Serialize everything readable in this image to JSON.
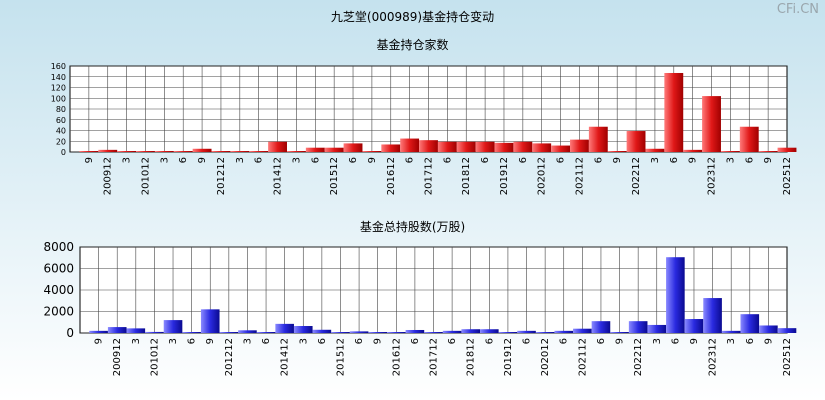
{
  "watermark": "CFi.CN",
  "chart_data": [
    {
      "type": "bar",
      "title": "九芝堂(000989)基金持仓变动",
      "subtitle": "基金持仓家数",
      "color": "#e02020",
      "ylim": [
        0,
        160
      ],
      "yticks": [
        0,
        20,
        40,
        60,
        80,
        100,
        120,
        140,
        160
      ],
      "grid": true,
      "x_labels": [
        "9",
        "200912",
        "3",
        "201012",
        "3",
        "6",
        "9",
        "201212",
        "3",
        "6",
        "201412",
        "3",
        "6",
        "201512",
        "6",
        "9",
        "201612",
        "6",
        "201712",
        "6",
        "201812",
        "6",
        "201912",
        "6",
        "202012",
        "6",
        "202112",
        "6",
        "9",
        "202212",
        "3",
        "6",
        "9",
        "202312",
        "3",
        "6",
        "9",
        "202512"
      ],
      "values": [
        1,
        4,
        1,
        1,
        1,
        1,
        6,
        1,
        1,
        1,
        19,
        1,
        8,
        8,
        16,
        1,
        14,
        25,
        22,
        19,
        19,
        19,
        17,
        19,
        16,
        12,
        23,
        47,
        1,
        39,
        6,
        147,
        4,
        104,
        1,
        47,
        1,
        8
      ]
    },
    {
      "type": "bar",
      "subtitle": "基金总持股数(万股)",
      "color": "#3030dd",
      "ylim": [
        0,
        8000
      ],
      "yticks": [
        0,
        2000,
        4000,
        6000,
        8000
      ],
      "grid": true,
      "x_labels": [
        "9",
        "200912",
        "3",
        "201012",
        "3",
        "6",
        "9",
        "201212",
        "3",
        "6",
        "201412",
        "3",
        "6",
        "201512",
        "6",
        "9",
        "201612",
        "6",
        "201712",
        "6",
        "201812",
        "6",
        "201912",
        "6",
        "202012",
        "6",
        "202112",
        "6",
        "9",
        "202212",
        "3",
        "6",
        "9",
        "202312",
        "3",
        "6",
        "9",
        "202512"
      ],
      "values": [
        200,
        550,
        430,
        100,
        1200,
        20,
        2200,
        60,
        250,
        30,
        850,
        650,
        300,
        50,
        150,
        60,
        50,
        280,
        80,
        200,
        350,
        350,
        50,
        200,
        50,
        200,
        400,
        1100,
        50,
        1100,
        750,
        7050,
        1300,
        3250,
        200,
        1750,
        700,
        450
      ]
    }
  ]
}
